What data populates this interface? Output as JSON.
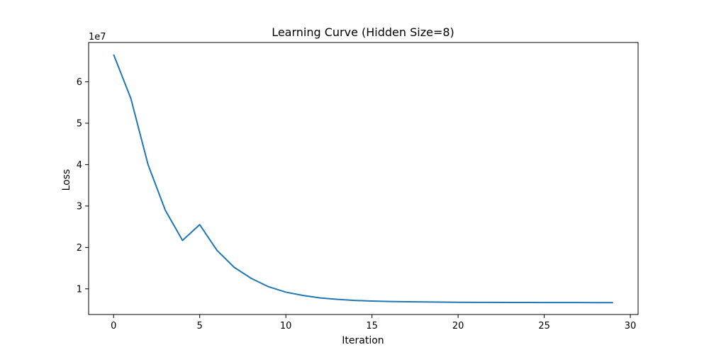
{
  "chart_data": {
    "type": "line",
    "title": "Learning Curve (Hidden Size=8)",
    "xlabel": "Iteration",
    "ylabel": "Loss",
    "y_offset_label": "1e7",
    "xlim": [
      -1.45,
      30.45
    ],
    "ylim": [
      0.38,
      6.95
    ],
    "y_scale_note": "values in units of 1e7",
    "xticks": [
      0,
      5,
      10,
      15,
      20,
      25,
      30
    ],
    "yticks": [
      1,
      2,
      3,
      4,
      5,
      6
    ],
    "grid": false,
    "series_color": "#1f77b4",
    "x": [
      0,
      1,
      2,
      3,
      4,
      5,
      6,
      7,
      8,
      9,
      10,
      11,
      12,
      13,
      14,
      15,
      16,
      17,
      18,
      19,
      20,
      21,
      22,
      23,
      24,
      25,
      26,
      27,
      28,
      29
    ],
    "series": [
      {
        "values": [
          6.66,
          5.6,
          4.0,
          2.9,
          2.17,
          2.55,
          1.93,
          1.52,
          1.25,
          1.05,
          0.92,
          0.84,
          0.78,
          0.745,
          0.72,
          0.705,
          0.695,
          0.688,
          0.683,
          0.679,
          0.676,
          0.674,
          0.672,
          0.671,
          0.67,
          0.669,
          0.668,
          0.668,
          0.667,
          0.667
        ]
      }
    ]
  }
}
